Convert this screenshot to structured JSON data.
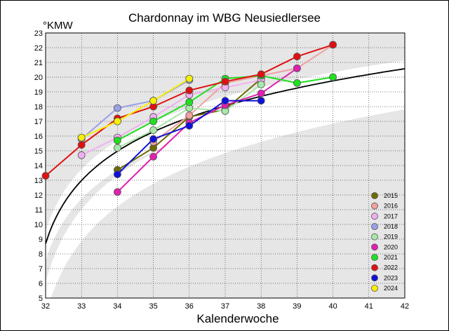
{
  "chart_data": {
    "type": "line",
    "title": "Chardonnay im WBG Neusiedlersee",
    "xlabel": "Kalenderwoche",
    "ylabel": "°KMW",
    "xlim": [
      32,
      42
    ],
    "ylim": [
      5,
      23
    ],
    "x_ticks": [
      32,
      33,
      34,
      35,
      36,
      37,
      38,
      39,
      40,
      41,
      42
    ],
    "y_ticks": [
      5,
      6,
      7,
      8,
      9,
      10,
      11,
      12,
      13,
      14,
      15,
      16,
      17,
      18,
      19,
      20,
      21,
      22,
      23
    ],
    "legend_position": "bottom-right",
    "trend_line_color": "#000000",
    "series": [
      {
        "name": "2015",
        "color": "#6b6b00",
        "points": [
          [
            34,
            13.7
          ],
          [
            35,
            15.2
          ],
          [
            36,
            17.3
          ],
          [
            37,
            17.8
          ],
          [
            38,
            19.9
          ]
        ]
      },
      {
        "name": "2016",
        "color": "#f2a0a0",
        "points": [
          [
            35,
            15.6
          ],
          [
            36,
            17.4
          ],
          [
            37,
            19.6
          ],
          [
            38,
            20.1
          ],
          [
            39,
            20.6
          ],
          [
            40,
            22.2
          ]
        ]
      },
      {
        "name": "2017",
        "color": "#f0b0f0",
        "points": [
          [
            33,
            14.7
          ],
          [
            34,
            15.9
          ],
          [
            35,
            17.3
          ],
          [
            36,
            18.8
          ],
          [
            37,
            19.3
          ],
          [
            38,
            19.8
          ]
        ]
      },
      {
        "name": "2018",
        "color": "#9aa0e8",
        "points": [
          [
            33,
            15.8
          ],
          [
            34,
            17.9
          ],
          [
            35,
            18.4
          ],
          [
            36,
            19.8
          ]
        ]
      },
      {
        "name": "2019",
        "color": "#a8e8a8",
        "points": [
          [
            34,
            15.2
          ],
          [
            35,
            16.4
          ],
          [
            36,
            17.9
          ],
          [
            37,
            17.7
          ],
          [
            38,
            19.5
          ]
        ]
      },
      {
        "name": "2020",
        "color": "#e020b0",
        "points": [
          [
            34,
            12.2
          ],
          [
            35,
            14.6
          ],
          [
            36,
            16.9
          ],
          [
            37,
            18.1
          ],
          [
            38,
            18.9
          ],
          [
            39,
            20.6
          ]
        ]
      },
      {
        "name": "2021",
        "color": "#20e020",
        "points": [
          [
            34,
            15.7
          ],
          [
            35,
            17.0
          ],
          [
            36,
            18.3
          ],
          [
            37,
            19.9
          ],
          [
            38,
            20.1
          ],
          [
            39,
            19.6
          ],
          [
            40,
            20.0
          ]
        ]
      },
      {
        "name": "2022",
        "color": "#e01010",
        "points": [
          [
            32,
            13.3
          ],
          [
            33,
            15.4
          ],
          [
            34,
            17.2
          ],
          [
            35,
            18.0
          ],
          [
            36,
            19.1
          ],
          [
            37,
            19.7
          ],
          [
            38,
            20.2
          ],
          [
            39,
            21.4
          ],
          [
            40,
            22.2
          ]
        ]
      },
      {
        "name": "2023",
        "color": "#1010d8",
        "points": [
          [
            34,
            13.4
          ],
          [
            35,
            15.8
          ],
          [
            36,
            16.7
          ],
          [
            37,
            18.4
          ],
          [
            38,
            18.4
          ]
        ]
      },
      {
        "name": "2024",
        "color": "#f8f000",
        "points": [
          [
            33,
            15.9
          ],
          [
            34,
            17.0
          ],
          [
            35,
            18.4
          ],
          [
            36,
            19.9
          ]
        ]
      }
    ]
  }
}
